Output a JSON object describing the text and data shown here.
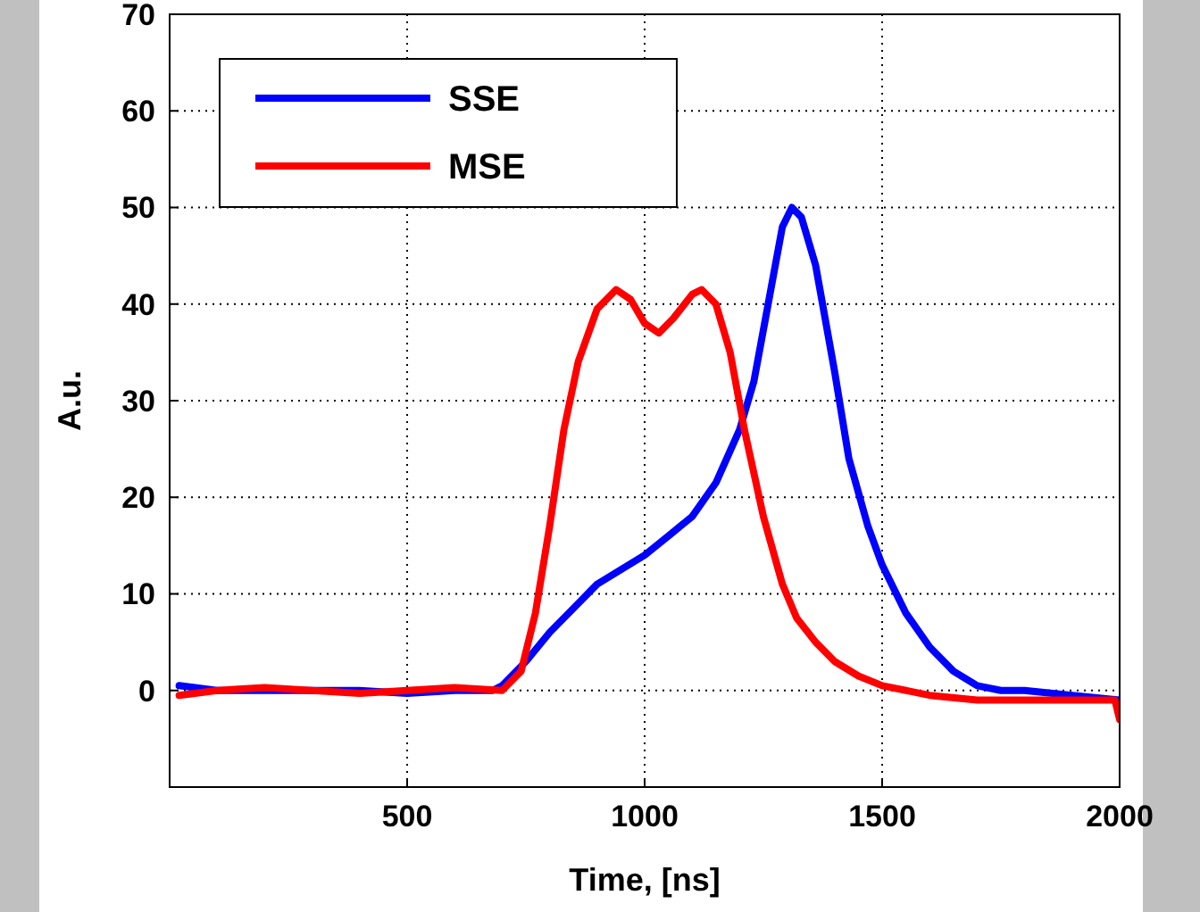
{
  "chart_data": {
    "type": "line",
    "xlabel": "Time, [ns]",
    "ylabel": "A.u.",
    "xlim": [
      0,
      2000
    ],
    "xticks": [
      500,
      1000,
      1500,
      2000
    ],
    "ylim": [
      -10,
      70
    ],
    "yticks": [
      0,
      10,
      20,
      30,
      40,
      50,
      60,
      70
    ],
    "grid": true,
    "legend": "top left",
    "line_style": "solid",
    "marker": "none",
    "series": [
      {
        "name": "SSE",
        "color": "#0000ff",
        "x": [
          20,
          100,
          300,
          400,
          500,
          600,
          680,
          700,
          750,
          800,
          850,
          900,
          950,
          1000,
          1050,
          1100,
          1150,
          1200,
          1230,
          1260,
          1290,
          1310,
          1330,
          1360,
          1400,
          1430,
          1470,
          1500,
          1550,
          1600,
          1650,
          1700,
          1750,
          1800,
          1900,
          2000
        ],
        "values": [
          0.5,
          0,
          0,
          0,
          -0.3,
          0,
          0,
          0.5,
          3,
          6,
          8.5,
          11,
          12.5,
          14,
          16,
          18,
          21.5,
          27,
          32,
          40,
          48,
          50,
          49,
          44,
          33,
          24,
          17,
          13,
          8,
          4.5,
          2,
          0.5,
          0,
          0,
          -0.5,
          -1
        ]
      },
      {
        "name": "MSE",
        "color": "#ff0000",
        "x": [
          20,
          100,
          200,
          300,
          400,
          500,
          600,
          700,
          740,
          770,
          800,
          830,
          860,
          900,
          940,
          970,
          1000,
          1030,
          1060,
          1100,
          1120,
          1150,
          1180,
          1210,
          1250,
          1290,
          1320,
          1360,
          1400,
          1450,
          1500,
          1600,
          1700,
          1800,
          1900,
          1990,
          2000
        ],
        "values": [
          -0.5,
          0,
          0.3,
          0,
          -0.3,
          0,
          0.3,
          0,
          2,
          8,
          17,
          27,
          34,
          39.5,
          41.5,
          40.5,
          38,
          37,
          38.5,
          41,
          41.5,
          40,
          35,
          27,
          18,
          11,
          7.5,
          5,
          3,
          1.5,
          0.5,
          -0.5,
          -1,
          -1,
          -1,
          -1,
          -3
        ]
      }
    ]
  }
}
